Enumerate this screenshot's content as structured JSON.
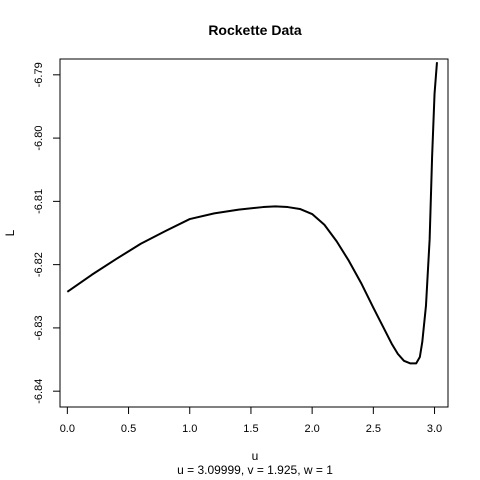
{
  "chart_data": {
    "type": "line",
    "title": "Rockette Data",
    "xlabel": "u",
    "ylabel": "L",
    "subtitle": "u = 3.09999, v = 1.925, w = 1",
    "xlim": [
      -0.06,
      3.11
    ],
    "ylim": [
      -6.8425,
      -6.7875
    ],
    "x_ticks": [
      {
        "value": 0.0,
        "label": "0.0"
      },
      {
        "value": 0.5,
        "label": "0.5"
      },
      {
        "value": 1.0,
        "label": "1.0"
      },
      {
        "value": 1.5,
        "label": "1.5"
      },
      {
        "value": 2.0,
        "label": "2.0"
      },
      {
        "value": 2.5,
        "label": "2.5"
      },
      {
        "value": 3.0,
        "label": "3.0"
      }
    ],
    "y_ticks": [
      {
        "value": -6.79,
        "label": "-6.79"
      },
      {
        "value": -6.8,
        "label": "-6.80"
      },
      {
        "value": -6.81,
        "label": "-6.81"
      },
      {
        "value": -6.82,
        "label": "-6.82"
      },
      {
        "value": -6.83,
        "label": "-6.83"
      },
      {
        "value": -6.84,
        "label": "-6.84"
      }
    ],
    "grid": false,
    "series": [
      {
        "color": "#000000",
        "x": [
          0.0,
          0.2,
          0.4,
          0.6,
          0.8,
          1.0,
          1.2,
          1.4,
          1.6,
          1.7,
          1.8,
          1.9,
          2.0,
          2.1,
          2.2,
          2.3,
          2.4,
          2.5,
          2.6,
          2.65,
          2.7,
          2.75,
          2.8,
          2.85,
          2.88,
          2.9,
          2.93,
          2.96,
          2.98,
          3.0,
          3.02
        ],
        "y": [
          -6.8243,
          -6.8216,
          -6.8191,
          -6.8167,
          -6.8147,
          -6.8128,
          -6.8119,
          -6.8113,
          -6.8109,
          -6.8108,
          -6.8109,
          -6.8112,
          -6.812,
          -6.8137,
          -6.8163,
          -6.8194,
          -6.8229,
          -6.8268,
          -6.8306,
          -6.8325,
          -6.8341,
          -6.8352,
          -6.8356,
          -6.8356,
          -6.8346,
          -6.8322,
          -6.8265,
          -6.816,
          -6.803,
          -6.793,
          -6.788
        ]
      }
    ]
  }
}
